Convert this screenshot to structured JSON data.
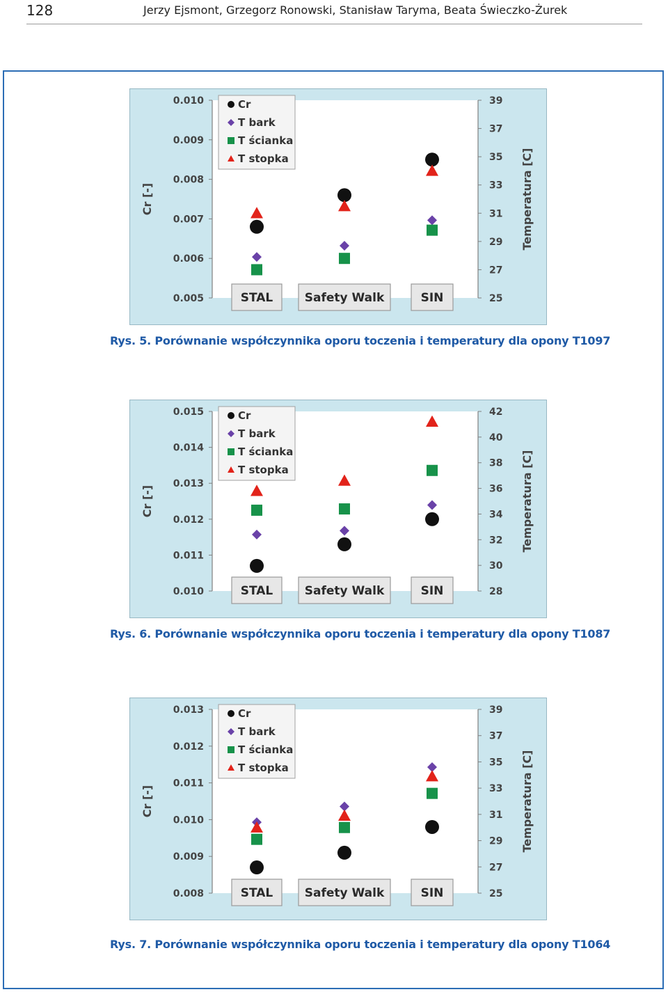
{
  "header": {
    "page_number": "128",
    "authors": "Jerzy Ejsmont, Grzegorz Ronowski, Stanisław Taryma, Beata Świeczko-Żurek"
  },
  "colors": {
    "Cr": "#111111",
    "T bark": "#6a42a8",
    "T ścianka": "#17924a",
    "T stopka": "#e2231a",
    "chart_background": "#cbe6ee",
    "caption": "#1f5aa6"
  },
  "figures": [
    {
      "caption": "Rys. 5. Porównanie współczynnika oporu toczenia i temperatury dla opony T1097",
      "chart_data": {
        "type": "scatter",
        "categories": [
          "STAL",
          "Safety Walk",
          "SIN"
        ],
        "ylabel": "Cr [-]",
        "y2label": "Temperatura [C]",
        "ylim": [
          0.005,
          0.01
        ],
        "yticks": [
          "0.010",
          "0.009",
          "0.008",
          "0.007",
          "0.006",
          "0.005"
        ],
        "y2lim": [
          25,
          39
        ],
        "y2ticks": [
          "39",
          "37",
          "35",
          "33",
          "31",
          "29",
          "27",
          "25"
        ],
        "legend": [
          "Cr",
          "T bark",
          "T ścianka",
          "T stopka"
        ],
        "legend_position": "top-left",
        "series": [
          {
            "name": "Cr",
            "axis": "left",
            "marker": "circle",
            "values": [
              0.0068,
              0.0076,
              0.0085
            ]
          },
          {
            "name": "T bark",
            "axis": "right",
            "marker": "diamond",
            "values": [
              27.9,
              28.7,
              30.5
            ]
          },
          {
            "name": "T ścianka",
            "axis": "right",
            "marker": "square",
            "values": [
              27.0,
              27.8,
              29.8
            ]
          },
          {
            "name": "T stopka",
            "axis": "right",
            "marker": "triangle",
            "values": [
              31.0,
              31.5,
              34.0
            ]
          }
        ]
      }
    },
    {
      "caption": "Rys. 6. Porównanie współczynnika oporu toczenia i temperatury dla opony T1087",
      "chart_data": {
        "type": "scatter",
        "categories": [
          "STAL",
          "Safety Walk",
          "SIN"
        ],
        "ylabel": "Cr [-]",
        "y2label": "Temperatura [C]",
        "ylim": [
          0.01,
          0.015
        ],
        "yticks": [
          "0.015",
          "0.014",
          "0.013",
          "0.012",
          "0.011",
          "0.010"
        ],
        "y2lim": [
          28,
          42
        ],
        "y2ticks": [
          "42",
          "40",
          "38",
          "36",
          "34",
          "32",
          "30",
          "28"
        ],
        "legend": [
          "Cr",
          "T bark",
          "T ścianka",
          "T stopka"
        ],
        "legend_position": "top-left",
        "series": [
          {
            "name": "Cr",
            "axis": "left",
            "marker": "circle",
            "values": [
              0.0107,
              0.0113,
              0.012
            ]
          },
          {
            "name": "T bark",
            "axis": "right",
            "marker": "diamond",
            "values": [
              32.4,
              32.7,
              34.7
            ]
          },
          {
            "name": "T ścianka",
            "axis": "right",
            "marker": "square",
            "values": [
              34.3,
              34.4,
              37.4
            ]
          },
          {
            "name": "T stopka",
            "axis": "right",
            "marker": "triangle",
            "values": [
              35.8,
              36.6,
              41.2
            ]
          }
        ]
      }
    },
    {
      "caption": "Rys. 7. Porównanie współczynnika oporu toczenia i temperatury dla opony T1064",
      "chart_data": {
        "type": "scatter",
        "categories": [
          "STAL",
          "Safety Walk",
          "SIN"
        ],
        "ylabel": "Cr [-]",
        "y2label": "Temperatura [C]",
        "ylim": [
          0.008,
          0.013
        ],
        "yticks": [
          "0.013",
          "0.012",
          "0.011",
          "0.010",
          "0.009",
          "0.008"
        ],
        "y2lim": [
          25,
          39
        ],
        "y2ticks": [
          "39",
          "37",
          "35",
          "33",
          "31",
          "29",
          "27",
          "25"
        ],
        "legend": [
          "Cr",
          "T bark",
          "T ścianka",
          "T stopka"
        ],
        "legend_position": "top-left",
        "series": [
          {
            "name": "Cr",
            "axis": "left",
            "marker": "circle",
            "values": [
              0.0087,
              0.0091,
              0.0098
            ]
          },
          {
            "name": "T bark",
            "axis": "right",
            "marker": "diamond",
            "values": [
              30.4,
              31.6,
              34.6
            ]
          },
          {
            "name": "T ścianka",
            "axis": "right",
            "marker": "square",
            "values": [
              29.1,
              30.0,
              32.6
            ]
          },
          {
            "name": "T stopka",
            "axis": "right",
            "marker": "triangle",
            "values": [
              30.0,
              30.9,
              33.9
            ]
          }
        ]
      }
    }
  ]
}
